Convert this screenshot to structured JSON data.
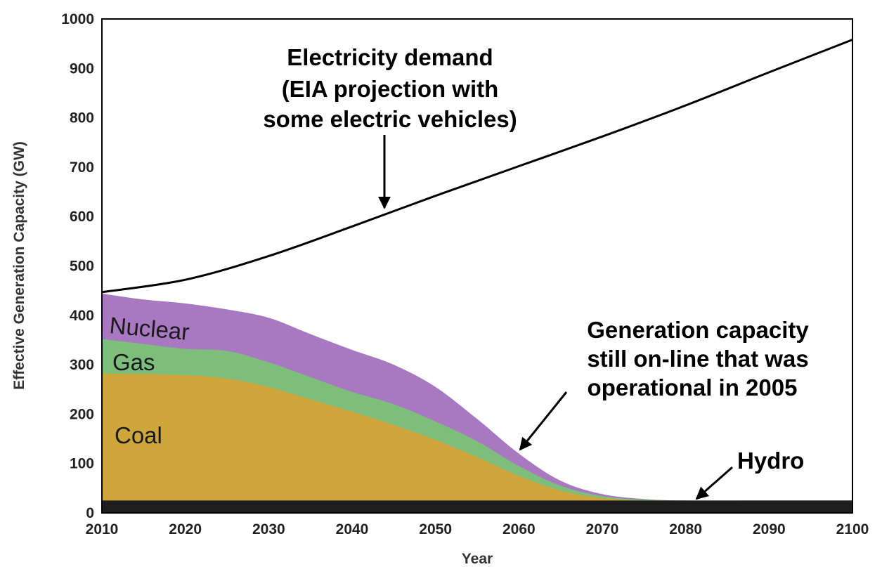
{
  "chart_data": {
    "type": "area",
    "xlabel": "Year",
    "ylabel": "Effective Generation Capacity (GW)",
    "xlim": [
      2010,
      2100
    ],
    "ylim": [
      0,
      1000
    ],
    "x_ticks": [
      "2010",
      "2020",
      "2030",
      "2040",
      "2050",
      "2060",
      "2070",
      "2080",
      "2090",
      "2100"
    ],
    "y_ticks": [
      "0",
      "100",
      "200",
      "300",
      "400",
      "500",
      "600",
      "700",
      "800",
      "900",
      "1000"
    ],
    "grid": false,
    "colors": {
      "hydro": "#1e1e1e",
      "coal": "#cfa63c",
      "gas": "#7dbe7d",
      "nuclear": "#a878c0",
      "demand": "#000000"
    },
    "x": [
      2010,
      2015,
      2020,
      2025,
      2030,
      2035,
      2040,
      2045,
      2050,
      2055,
      2060,
      2065,
      2070,
      2075,
      2080,
      2090,
      2100
    ],
    "series": [
      {
        "name": "Hydro",
        "key": "hydro",
        "values": [
          25,
          25,
          25,
          25,
          25,
          25,
          25,
          25,
          25,
          25,
          25,
          25,
          25,
          25,
          25,
          25,
          25
        ]
      },
      {
        "name": "Coal",
        "key": "coal",
        "values": [
          282,
          281,
          279,
          272,
          255,
          230,
          205,
          178,
          148,
          113,
          75,
          45,
          30,
          25,
          25,
          25,
          25
        ]
      },
      {
        "name": "Gas",
        "key": "gas",
        "values": [
          352,
          342,
          332,
          328,
          305,
          275,
          245,
          220,
          185,
          145,
          95,
          55,
          34,
          27,
          25,
          25,
          25
        ]
      },
      {
        "name": "Nuclear",
        "key": "nuclear",
        "values": [
          444,
          432,
          424,
          412,
          395,
          362,
          330,
          300,
          255,
          190,
          120,
          65,
          38,
          28,
          25,
          25,
          25
        ]
      }
    ],
    "demand": {
      "x": [
        2010,
        2020,
        2030,
        2040,
        2050,
        2060,
        2070,
        2080,
        2090,
        2100
      ],
      "values": [
        447,
        472,
        520,
        580,
        642,
        702,
        762,
        825,
        892,
        958
      ]
    },
    "area_labels": {
      "nuclear": "Nuclear",
      "gas": "Gas",
      "coal": "Coal"
    },
    "annotations": {
      "demand": [
        "Electricity demand",
        "(EIA projection with",
        "some electric vehicles)"
      ],
      "capacity": [
        "Generation capacity",
        "still on-line that was",
        "operational in 2005"
      ],
      "hydro": "Hydro"
    }
  }
}
